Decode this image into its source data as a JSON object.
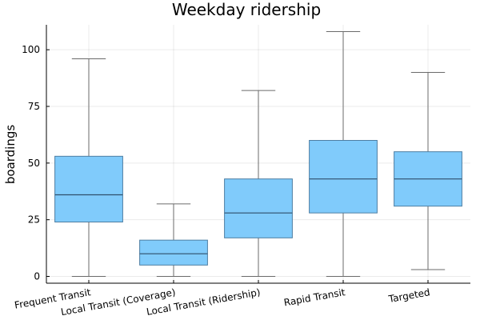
{
  "chart_data": {
    "type": "box",
    "title": "Weekday ridership",
    "xlabel": "",
    "ylabel": "boardings",
    "ylim": [
      -3,
      111
    ],
    "yticks": [
      0,
      25,
      50,
      75,
      100
    ],
    "grid": true,
    "legend": "none",
    "color": "#80cbfb",
    "categories": [
      "Frequent Transit",
      "Local Transit (Coverage)",
      "Local Transit (Ridership)",
      "Rapid Transit",
      "Targeted"
    ],
    "series": [
      {
        "values": [
          {
            "min": 0,
            "q1": 24,
            "median": 36,
            "q3": 53,
            "max": 96
          },
          {
            "min": 0,
            "q1": 5,
            "median": 10,
            "q3": 16,
            "max": 32
          },
          {
            "min": 0,
            "q1": 17,
            "median": 28,
            "q3": 43,
            "max": 82
          },
          {
            "min": 0,
            "q1": 28,
            "median": 43,
            "q3": 60,
            "max": 108
          },
          {
            "min": 3,
            "q1": 31,
            "median": 43,
            "q3": 55,
            "max": 90
          }
        ]
      }
    ]
  }
}
